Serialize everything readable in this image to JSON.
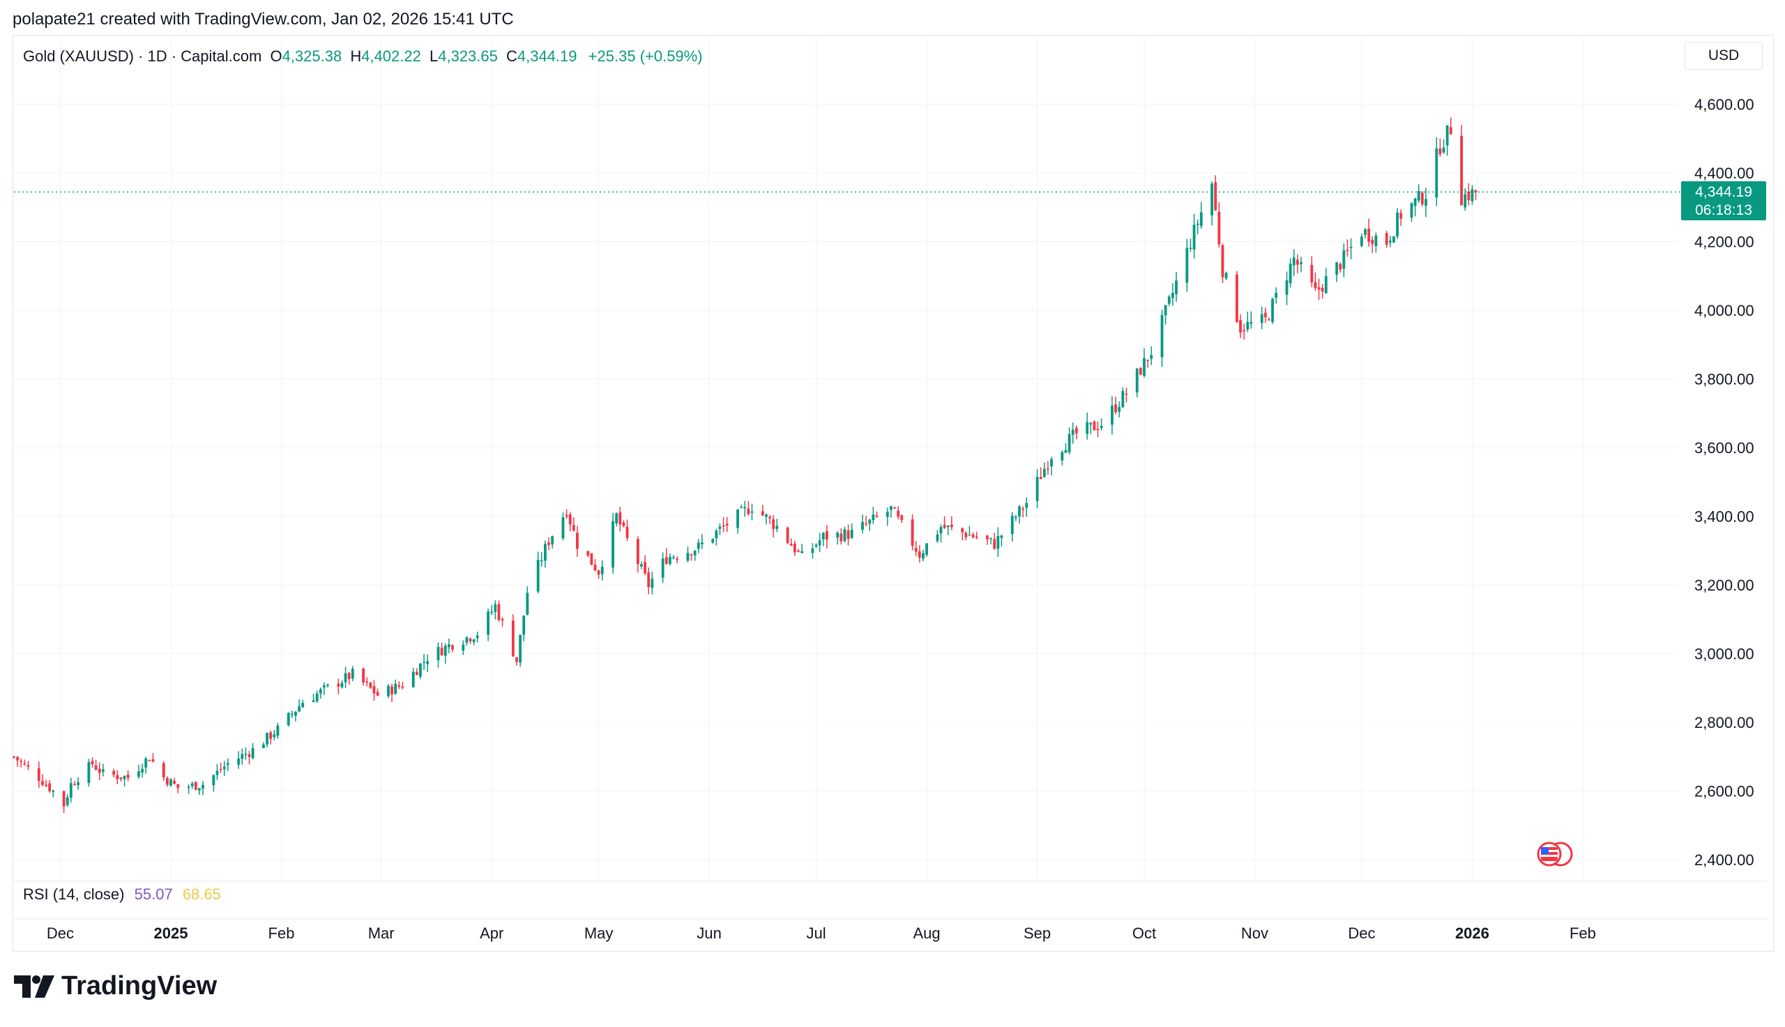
{
  "header": {
    "text": "polapate21 created with TradingView.com, Jan 02, 2026 15:41 UTC"
  },
  "legend": {
    "symbol": "Gold (XAUUSD) · 1D · Capital.com",
    "o_label": "O",
    "o_value": "4,325.38",
    "h_label": "H",
    "h_value": "4,402.22",
    "l_label": "L",
    "l_value": "4,323.65",
    "c_label": "C",
    "c_value": "4,344.19",
    "change": "+25.35 (+0.59%)"
  },
  "currency": "USD",
  "price_tag": {
    "price": "4,344.19",
    "countdown": "06:18:13"
  },
  "rsi": {
    "label": "RSI (14, close)",
    "value1": "55.07",
    "value2": "68.65"
  },
  "logo": {
    "text": "TradingView"
  },
  "colors": {
    "up": "#089981",
    "down": "#f23645",
    "grid": "#f0f3fa",
    "axis_text": "#131722"
  },
  "chart_data": {
    "type": "candlestick",
    "ylim": [
      2370,
      4680
    ],
    "y_ticks": [
      4600,
      4400,
      4200,
      4000,
      3800,
      3600,
      3400,
      3200,
      3000,
      2800,
      2600,
      2400
    ],
    "y_tick_labels": [
      "4,600.00",
      "4,400.00",
      "4,200.00",
      "4,000.00",
      "3,800.00",
      "3,600.00",
      "3,400.00",
      "3,200.00",
      "3,000.00",
      "2,800.00",
      "2,600.00",
      "2,400.00"
    ],
    "x_start": "2024-11-18",
    "x_end": "2026-02-28",
    "x_ticks": [
      {
        "date": "2024-12-01",
        "label": "Dec",
        "bold": false
      },
      {
        "date": "2025-01-01",
        "label": "2025",
        "bold": true
      },
      {
        "date": "2025-02-01",
        "label": "Feb",
        "bold": false
      },
      {
        "date": "2025-03-01",
        "label": "Mar",
        "bold": false
      },
      {
        "date": "2025-04-01",
        "label": "Apr",
        "bold": false
      },
      {
        "date": "2025-05-01",
        "label": "May",
        "bold": false
      },
      {
        "date": "2025-06-01",
        "label": "Jun",
        "bold": false
      },
      {
        "date": "2025-07-01",
        "label": "Jul",
        "bold": false
      },
      {
        "date": "2025-08-01",
        "label": "Aug",
        "bold": false
      },
      {
        "date": "2025-09-01",
        "label": "Sep",
        "bold": false
      },
      {
        "date": "2025-10-01",
        "label": "Oct",
        "bold": false
      },
      {
        "date": "2025-11-01",
        "label": "Nov",
        "bold": false
      },
      {
        "date": "2025-12-01",
        "label": "Dec",
        "bold": false
      },
      {
        "date": "2026-01-01",
        "label": "2026",
        "bold": true
      },
      {
        "date": "2026-02-01",
        "label": "Feb",
        "bold": false
      }
    ],
    "last_close": 4344.19,
    "anchors": [
      [
        "2024-11-18",
        2700
      ],
      [
        "2024-11-25",
        2640
      ],
      [
        "2024-11-29",
        2600
      ],
      [
        "2024-12-02",
        2560
      ],
      [
        "2024-12-04",
        2620
      ],
      [
        "2024-12-10",
        2680
      ],
      [
        "2024-12-13",
        2650
      ],
      [
        "2024-12-20",
        2640
      ],
      [
        "2024-12-26",
        2700
      ],
      [
        "2024-12-30",
        2640
      ],
      [
        "2025-01-03",
        2610
      ],
      [
        "2025-01-10",
        2620
      ],
      [
        "2025-01-17",
        2680
      ],
      [
        "2025-01-24",
        2720
      ],
      [
        "2025-01-31",
        2780
      ],
      [
        "2025-02-07",
        2860
      ],
      [
        "2025-02-14",
        2900
      ],
      [
        "2025-02-21",
        2940
      ],
      [
        "2025-02-28",
        2880
      ],
      [
        "2025-03-07",
        2910
      ],
      [
        "2025-03-14",
        2990
      ],
      [
        "2025-03-21",
        3030
      ],
      [
        "2025-03-28",
        3060
      ],
      [
        "2025-04-02",
        3140
      ],
      [
        "2025-04-08",
        2980
      ],
      [
        "2025-04-11",
        3180
      ],
      [
        "2025-04-17",
        3330
      ],
      [
        "2025-04-22",
        3420
      ],
      [
        "2025-04-25",
        3320
      ],
      [
        "2025-05-01",
        3240
      ],
      [
        "2025-05-06",
        3400
      ],
      [
        "2025-05-09",
        3330
      ],
      [
        "2025-05-15",
        3200
      ],
      [
        "2025-05-20",
        3280
      ],
      [
        "2025-05-29",
        3310
      ],
      [
        "2025-06-05",
        3370
      ],
      [
        "2025-06-13",
        3430
      ],
      [
        "2025-06-20",
        3370
      ],
      [
        "2025-06-27",
        3280
      ],
      [
        "2025-07-03",
        3340
      ],
      [
        "2025-07-11",
        3350
      ],
      [
        "2025-07-22",
        3420
      ],
      [
        "2025-07-30",
        3290
      ],
      [
        "2025-08-05",
        3370
      ],
      [
        "2025-08-12",
        3350
      ],
      [
        "2025-08-20",
        3320
      ],
      [
        "2025-08-29",
        3440
      ],
      [
        "2025-09-05",
        3580
      ],
      [
        "2025-09-12",
        3640
      ],
      [
        "2025-09-19",
        3670
      ],
      [
        "2025-09-26",
        3760
      ],
      [
        "2025-10-03",
        3880
      ],
      [
        "2025-10-08",
        4020
      ],
      [
        "2025-10-14",
        4200
      ],
      [
        "2025-10-20",
        4370
      ],
      [
        "2025-10-23",
        4120
      ],
      [
        "2025-10-28",
        3950
      ],
      [
        "2025-11-04",
        3970
      ],
      [
        "2025-11-12",
        4150
      ],
      [
        "2025-11-18",
        4050
      ],
      [
        "2025-11-26",
        4150
      ],
      [
        "2025-12-01",
        4230
      ],
      [
        "2025-12-08",
        4200
      ],
      [
        "2025-12-12",
        4280
      ],
      [
        "2025-12-19",
        4340
      ],
      [
        "2025-12-23",
        4480
      ],
      [
        "2025-12-26",
        4530
      ],
      [
        "2025-12-29",
        4330
      ],
      [
        "2026-01-02",
        4344
      ]
    ]
  }
}
